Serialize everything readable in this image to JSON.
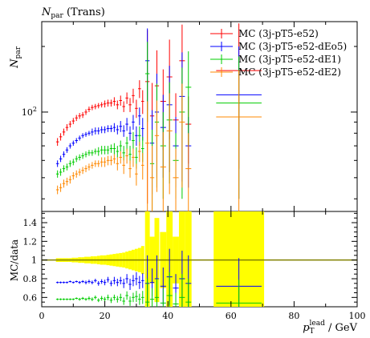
{
  "chart_data": [
    {
      "type": "scatter",
      "panel": "main",
      "title": "N_par (Trans)",
      "title_symbol": "N",
      "title_sub": "par",
      "title_tail": " (Trans)",
      "ylabel": "N_par",
      "ylabel_symbol": "N",
      "ylabel_sub": "par",
      "yscale": "log",
      "xlim": [
        0,
        100
      ],
      "ylim": [
        35,
        260
      ],
      "y_tick_labels": [
        {
          "value": 100,
          "base": "10",
          "exp": "2"
        }
      ],
      "legend_position": "top-right",
      "x": [
        5,
        6,
        7,
        8,
        9,
        10,
        11,
        12,
        13,
        14,
        15,
        16,
        17,
        18,
        19,
        20,
        21,
        22,
        23,
        24,
        25,
        26,
        27,
        28,
        29,
        30,
        31,
        32,
        33.5,
        35,
        36.5,
        38.5,
        40.5,
        42.5,
        44.5,
        46.5,
        62.5
      ],
      "series": [
        {
          "name": "MC (3j-pT5-e52)",
          "color": "#ff0000",
          "values": [
            73,
            77,
            81,
            85,
            88,
            91,
            94,
            96,
            97,
            100,
            103,
            105,
            106,
            107,
            108,
            109,
            110,
            110,
            112,
            108,
            113,
            106,
            116,
            108,
            119,
            104,
            128,
            112,
            138,
            96,
            132,
            112,
            145,
            92,
            172,
            88,
            155
          ],
          "errors": [
            3,
            3,
            3,
            3,
            3,
            3,
            3,
            3,
            3,
            3,
            3,
            3,
            3,
            3,
            3,
            4,
            4,
            4,
            5,
            5,
            6,
            6,
            7,
            8,
            9,
            10,
            12,
            14,
            100,
            40,
            60,
            45,
            70,
            30,
            80,
            30,
            100
          ]
        },
        {
          "name": "MC (3j-pT5-e52-dEo5)",
          "color": "#0000ff",
          "values": [
            58,
            61,
            64,
            67,
            70,
            72,
            74,
            76,
            78,
            79,
            80,
            81,
            82,
            82,
            83,
            83,
            84,
            84,
            85,
            83,
            86,
            82,
            88,
            80,
            90,
            78,
            96,
            84,
            172,
            72,
            100,
            85,
            108,
            70,
            118,
            70,
            120
          ],
          "errors": [
            2,
            2,
            2,
            2,
            2,
            2,
            2,
            2,
            2,
            2,
            2,
            3,
            3,
            3,
            3,
            3,
            3,
            3,
            4,
            4,
            5,
            5,
            6,
            6,
            7,
            8,
            9,
            10,
            70,
            30,
            50,
            35,
            55,
            25,
            70,
            25,
            80
          ]
        },
        {
          "name": "MC (3j-pT5-e52-dE1)",
          "color": "#00cc00",
          "values": [
            52,
            53,
            55,
            56,
            58,
            59,
            61,
            62,
            63,
            64,
            65,
            65,
            66,
            66,
            67,
            67,
            67,
            68,
            68,
            66,
            70,
            65,
            72,
            64,
            74,
            62,
            78,
            68,
            150,
            58,
            90,
            70,
            92,
            60,
            100,
            130,
            110
          ],
          "errors": [
            2,
            2,
            2,
            2,
            2,
            2,
            2,
            2,
            2,
            2,
            2,
            2,
            2,
            3,
            3,
            3,
            3,
            3,
            4,
            4,
            4,
            5,
            5,
            6,
            7,
            7,
            8,
            9,
            60,
            25,
            45,
            30,
            45,
            20,
            60,
            60,
            70
          ]
        },
        {
          "name": "MC (3j-pT5-e52-dE2)",
          "color": "#ff8800",
          "values": [
            44,
            45,
            47,
            48,
            49,
            51,
            52,
            53,
            54,
            55,
            56,
            57,
            58,
            58,
            59,
            59,
            60,
            60,
            61,
            58,
            62,
            57,
            63,
            55,
            62,
            52,
            66,
            57,
            72,
            50,
            78,
            56,
            82,
            50,
            90,
            55,
            95
          ],
          "errors": [
            2,
            2,
            2,
            2,
            2,
            2,
            2,
            2,
            2,
            2,
            2,
            2,
            2,
            2,
            3,
            3,
            3,
            3,
            3,
            4,
            4,
            5,
            5,
            5,
            6,
            6,
            7,
            8,
            40,
            20,
            35,
            25,
            40,
            18,
            45,
            25,
            60
          ]
        }
      ]
    },
    {
      "type": "scatter",
      "panel": "ratio",
      "ylabel": "MC/data",
      "xlabel": "p_T^lead / GeV",
      "xlabel_symbol": "p",
      "xlabel_sub": "T",
      "xlabel_sup": "lead",
      "xlabel_tail": " / GeV",
      "xlim": [
        0,
        100
      ],
      "ylim": [
        0.5,
        1.52
      ],
      "x_tick_labels": [
        "0",
        "20",
        "40",
        "60",
        "80",
        "100"
      ],
      "y_tick_labels": [
        "0.6",
        "0.8",
        "1",
        "1.2",
        "1.4"
      ],
      "reference_line": 1,
      "reference_color": "#808000",
      "band_color": "#ffff00",
      "band_x": [
        5,
        6,
        7,
        8,
        9,
        10,
        11,
        12,
        13,
        14,
        15,
        16,
        17,
        18,
        19,
        20,
        21,
        22,
        23,
        24,
        25,
        26,
        27,
        28,
        29,
        30,
        31,
        32,
        33.5,
        35,
        36.5,
        38.5,
        40.5,
        42.5,
        44.5,
        46.5,
        62.5
      ],
      "band_halfwidth": [
        0.02,
        0.02,
        0.02,
        0.02,
        0.02,
        0.025,
        0.025,
        0.03,
        0.03,
        0.035,
        0.035,
        0.04,
        0.04,
        0.045,
        0.05,
        0.05,
        0.055,
        0.06,
        0.065,
        0.07,
        0.075,
        0.08,
        0.09,
        0.1,
        0.11,
        0.12,
        0.13,
        0.15,
        0.6,
        0.25,
        0.45,
        0.3,
        0.6,
        0.25,
        0.6,
        0.6,
        0.6
      ],
      "series": [
        {
          "name": "MC (3j-pT5-e52-dEo5)",
          "color": "#0000ff",
          "values": [
            0.76,
            0.76,
            0.76,
            0.76,
            0.77,
            0.76,
            0.77,
            0.76,
            0.77,
            0.76,
            0.77,
            0.76,
            0.78,
            0.75,
            0.77,
            0.76,
            0.79,
            0.75,
            0.78,
            0.76,
            0.78,
            0.75,
            0.8,
            0.74,
            0.78,
            0.8,
            0.76,
            0.78,
            0.75,
            0.76,
            0.8,
            0.72,
            0.82,
            0.7,
            0.8,
            0.75,
            0.72
          ],
          "errors": [
            0.01,
            0.01,
            0.01,
            0.01,
            0.01,
            0.01,
            0.01,
            0.015,
            0.015,
            0.02,
            0.02,
            0.02,
            0.02,
            0.025,
            0.025,
            0.03,
            0.03,
            0.03,
            0.04,
            0.04,
            0.04,
            0.05,
            0.05,
            0.06,
            0.06,
            0.07,
            0.07,
            0.08,
            0.3,
            0.15,
            0.25,
            0.2,
            0.3,
            0.15,
            0.3,
            0.3,
            0.3
          ]
        },
        {
          "name": "MC (3j-pT5-e52-dE1)",
          "color": "#00cc00",
          "values": [
            0.58,
            0.58,
            0.58,
            0.58,
            0.58,
            0.58,
            0.59,
            0.58,
            0.59,
            0.58,
            0.59,
            0.58,
            0.6,
            0.57,
            0.59,
            0.58,
            0.6,
            0.57,
            0.6,
            0.58,
            0.6,
            0.56,
            0.62,
            0.56,
            0.6,
            0.61,
            0.58,
            0.6,
            0.55,
            0.58,
            0.6,
            0.54,
            0.62,
            0.53,
            0.6,
            0.55,
            0.54
          ],
          "errors": [
            0.01,
            0.01,
            0.01,
            0.01,
            0.01,
            0.01,
            0.01,
            0.015,
            0.015,
            0.015,
            0.02,
            0.02,
            0.02,
            0.02,
            0.025,
            0.025,
            0.03,
            0.03,
            0.03,
            0.035,
            0.04,
            0.04,
            0.045,
            0.05,
            0.05,
            0.06,
            0.06,
            0.07,
            0.25,
            0.12,
            0.2,
            0.15,
            0.25,
            0.12,
            0.25,
            0.25,
            0.25
          ]
        }
      ]
    }
  ]
}
